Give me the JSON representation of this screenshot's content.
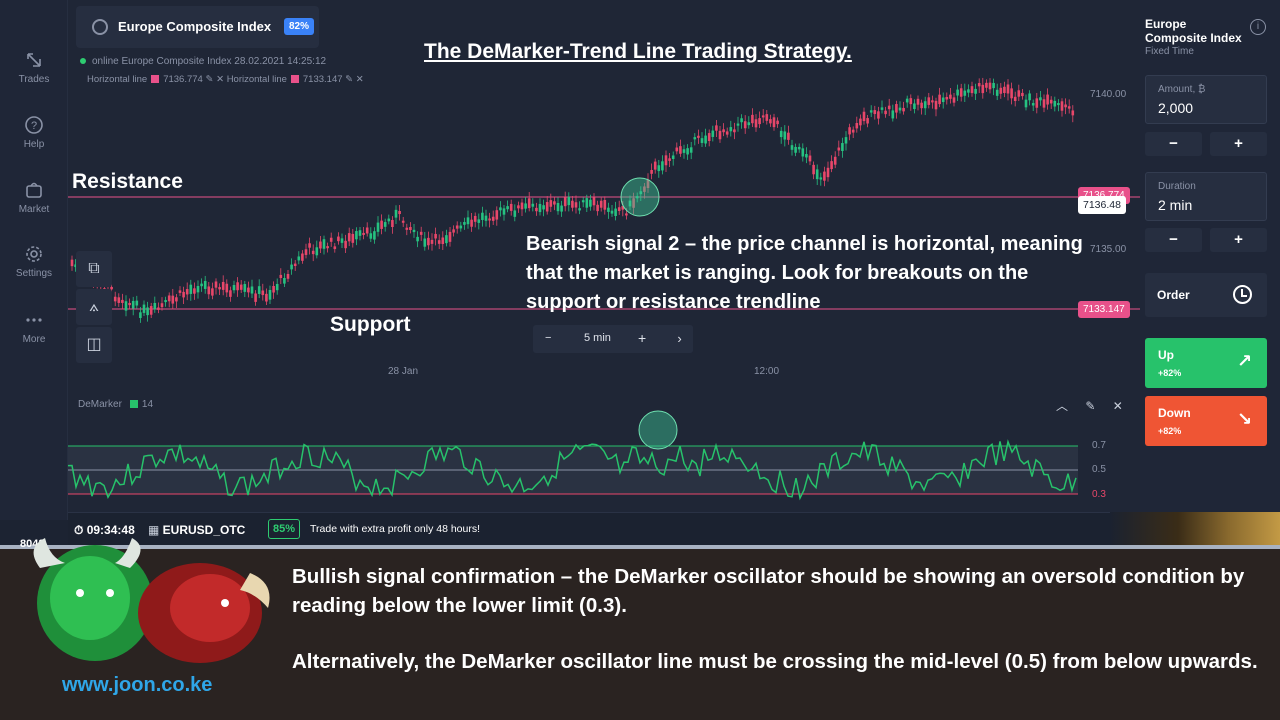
{
  "nav": {
    "items": [
      {
        "label": "Trades",
        "icon": "trades-icon"
      },
      {
        "label": "Help",
        "icon": "help-icon"
      },
      {
        "label": "Market",
        "icon": "market-icon"
      },
      {
        "label": "Settings",
        "icon": "settings-icon"
      },
      {
        "label": "More",
        "icon": "more-icon"
      }
    ]
  },
  "asset": {
    "name": "Europe Composite Index",
    "payout": "82%",
    "online": "online Europe Composite Index  28.02.2021 14:25:12",
    "hline1_label": "Horizontal line",
    "hline1_value": "7136.774",
    "hline2_label": "Horizontal line",
    "hline2_value": "7133.147"
  },
  "chart": {
    "price_labels": [
      "7140.00",
      "7135.00"
    ],
    "current_price": "7136.48",
    "resistance_tag": "7136.774",
    "support_tag": "7133.147",
    "time_labels": [
      "28 Jan",
      "12:00"
    ],
    "timeframe": "5 min",
    "colors": {
      "up": "#26c281",
      "down": "#e8476a",
      "line_red": "#e8518a"
    }
  },
  "demarker": {
    "name": "DeMarker",
    "period": "14",
    "levels": [
      "0.7",
      "0.5",
      "0.3"
    ]
  },
  "status": {
    "time": "09:34:48",
    "pair": "EURUSD_OTC",
    "pct": "85%",
    "promo": "Trade with extra profit only 48 hours!"
  },
  "right_panel": {
    "title_line1": "Europe",
    "title_line2": "Composite Index",
    "subtitle": "Fixed Time",
    "amount_label": "Amount, ₿",
    "amount_value": "2,000",
    "duration_label": "Duration",
    "duration_value": "2 min",
    "minus": "−",
    "plus": "+",
    "order": "Order",
    "up_label": "Up",
    "up_pct": "+82%",
    "down_label": "Down",
    "down_pct": "+82%",
    "up_color": "#27c26b",
    "down_color": "#ef5534"
  },
  "annotations": {
    "title": "The DeMarker-Trend Line Trading Strategy.",
    "resistance": "Resistance",
    "support": "Support",
    "bearish": "Bearish signal 2 – the price channel is horizontal, meaning that the market is ranging. Look for breakouts on the support or resistance trendline"
  },
  "banner": {
    "counter": "8042",
    "para1": "Bullish signal confirmation – the DeMarker oscillator should be showing an oversold condition by reading below the lower limit (0.3).",
    "para2": "Alternatively, the DeMarker oscillator line must be crossing the mid-level (0.5) from below upwards.",
    "site": "www.joon.co.ke"
  }
}
